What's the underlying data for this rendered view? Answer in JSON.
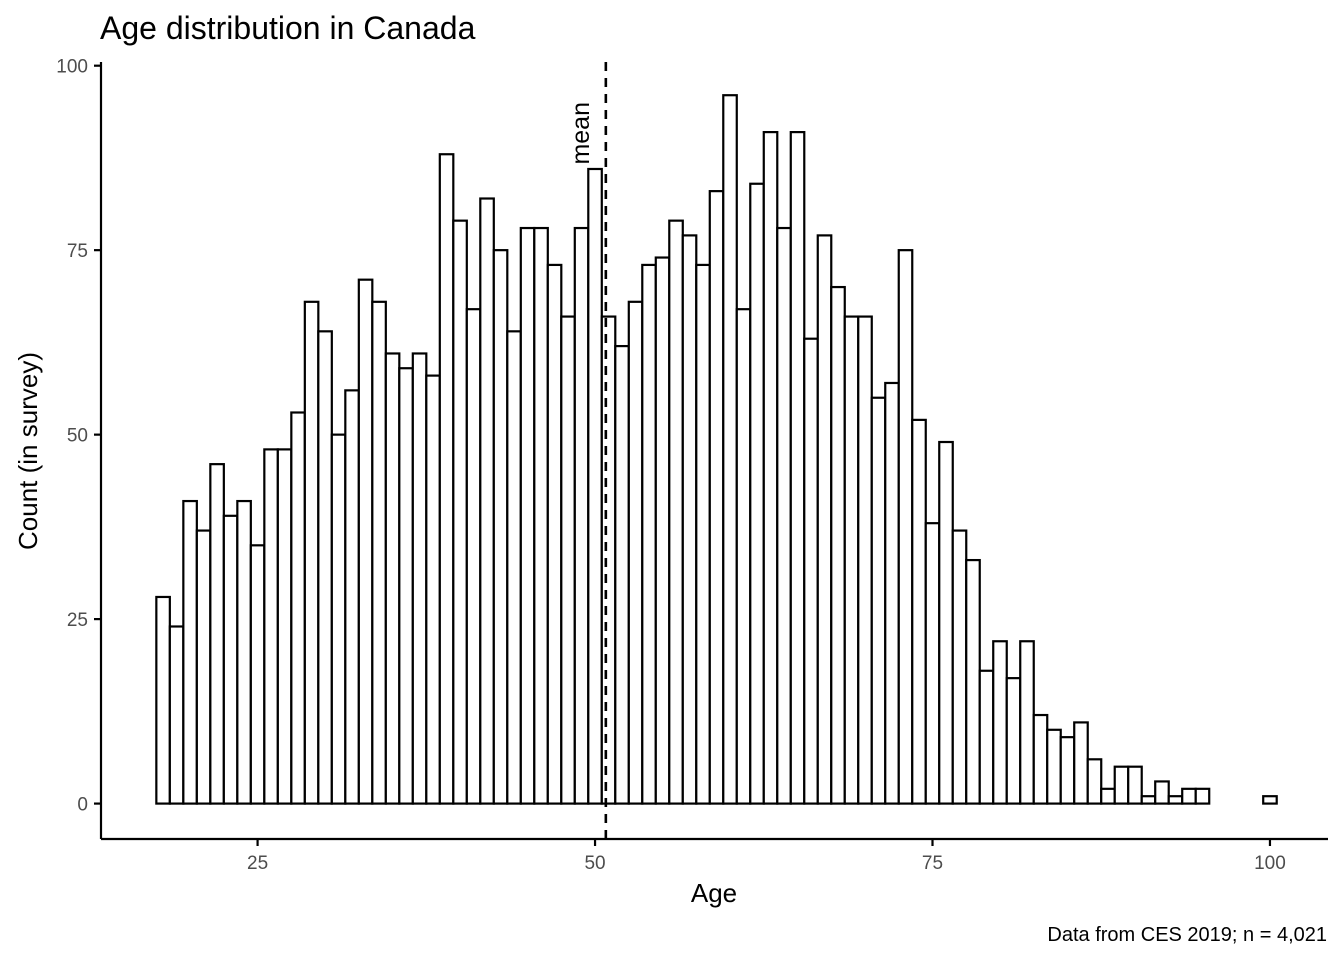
{
  "chart_data": {
    "type": "bar",
    "title": "Age distribution in Canada",
    "xlabel": "Age",
    "ylabel": "Count (in survey)",
    "caption": "Data from CES 2019; n = 4,021",
    "x_ticks": [
      25,
      50,
      75,
      100
    ],
    "y_ticks": [
      0,
      25,
      50,
      75,
      100
    ],
    "xlim": [
      13.4,
      104.3
    ],
    "ylim": [
      -4.8,
      100.5
    ],
    "bin_width": 1,
    "ages": [
      18,
      19,
      20,
      21,
      22,
      23,
      24,
      25,
      26,
      27,
      28,
      29,
      30,
      31,
      32,
      33,
      34,
      35,
      36,
      37,
      38,
      39,
      40,
      41,
      42,
      43,
      44,
      45,
      46,
      47,
      48,
      49,
      50,
      51,
      52,
      53,
      54,
      55,
      56,
      57,
      58,
      59,
      60,
      61,
      62,
      63,
      64,
      65,
      66,
      67,
      68,
      69,
      70,
      71,
      72,
      73,
      74,
      75,
      76,
      77,
      78,
      79,
      80,
      81,
      82,
      83,
      84,
      85,
      86,
      87,
      88,
      89,
      90,
      91,
      92,
      93,
      94,
      95,
      96,
      97,
      98,
      99,
      100
    ],
    "counts": [
      28,
      24,
      41,
      37,
      46,
      39,
      41,
      35,
      48,
      48,
      53,
      68,
      64,
      50,
      56,
      71,
      68,
      61,
      59,
      61,
      58,
      88,
      79,
      67,
      82,
      75,
      64,
      78,
      78,
      73,
      66,
      78,
      86,
      66,
      62,
      68,
      73,
      74,
      79,
      77,
      73,
      83,
      96,
      67,
      84,
      91,
      78,
      91,
      63,
      77,
      70,
      66,
      66,
      55,
      57,
      75,
      52,
      38,
      49,
      37,
      33,
      18,
      22,
      17,
      22,
      12,
      10,
      9,
      11,
      6,
      2,
      5,
      5,
      1,
      3,
      1,
      2,
      2,
      0,
      0,
      0,
      0,
      1
    ],
    "mean": 50.8,
    "mean_label": "mean"
  }
}
